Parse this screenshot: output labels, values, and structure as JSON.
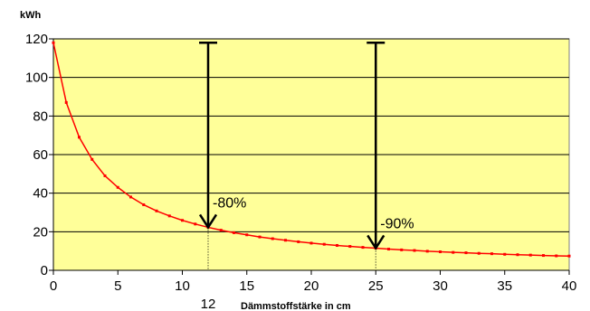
{
  "chart_data": {
    "type": "line",
    "ylabel": "kWh",
    "xlabel": "Dämmstoffstärke in cm",
    "xlim": [
      0,
      40
    ],
    "ylim": [
      0,
      120
    ],
    "x_ticks": [
      "0",
      "5",
      "10",
      "15",
      "20",
      "25",
      "30",
      "35",
      "40"
    ],
    "y_ticks": [
      "0",
      "20",
      "40",
      "60",
      "80",
      "100",
      "120"
    ],
    "extra_x_tick": "12",
    "grid": "horizontal",
    "background_color": "#FFFF99",
    "series": [
      {
        "color": "#FF0000",
        "x": [
          0,
          1,
          2,
          3,
          4,
          5,
          6,
          7,
          8,
          9,
          10,
          11,
          12,
          13,
          14,
          15,
          16,
          17,
          18,
          19,
          20,
          21,
          22,
          23,
          24,
          25,
          26,
          27,
          28,
          29,
          30,
          31,
          32,
          33,
          34,
          35,
          36,
          37,
          38,
          39,
          40
        ],
        "values": [
          118,
          87,
          69,
          57.5,
          49,
          43,
          38,
          34,
          30.8,
          28.2,
          25.9,
          24,
          22.3,
          20.8,
          19.5,
          18.4,
          17.3,
          16.4,
          15.6,
          14.8,
          14.1,
          13.5,
          12.9,
          12.4,
          11.9,
          11.5,
          11,
          10.6,
          10.3,
          9.9,
          9.6,
          9.3,
          9.1,
          8.8,
          8.6,
          8.3,
          8.1,
          7.9,
          7.7,
          7.5,
          7.4
        ]
      }
    ],
    "annotations": [
      {
        "x": 12,
        "y_from": 118,
        "y_to": 22.3,
        "label": "-80%"
      },
      {
        "x": 25,
        "y_from": 118,
        "y_to": 11.5,
        "label": "-90%"
      }
    ]
  }
}
